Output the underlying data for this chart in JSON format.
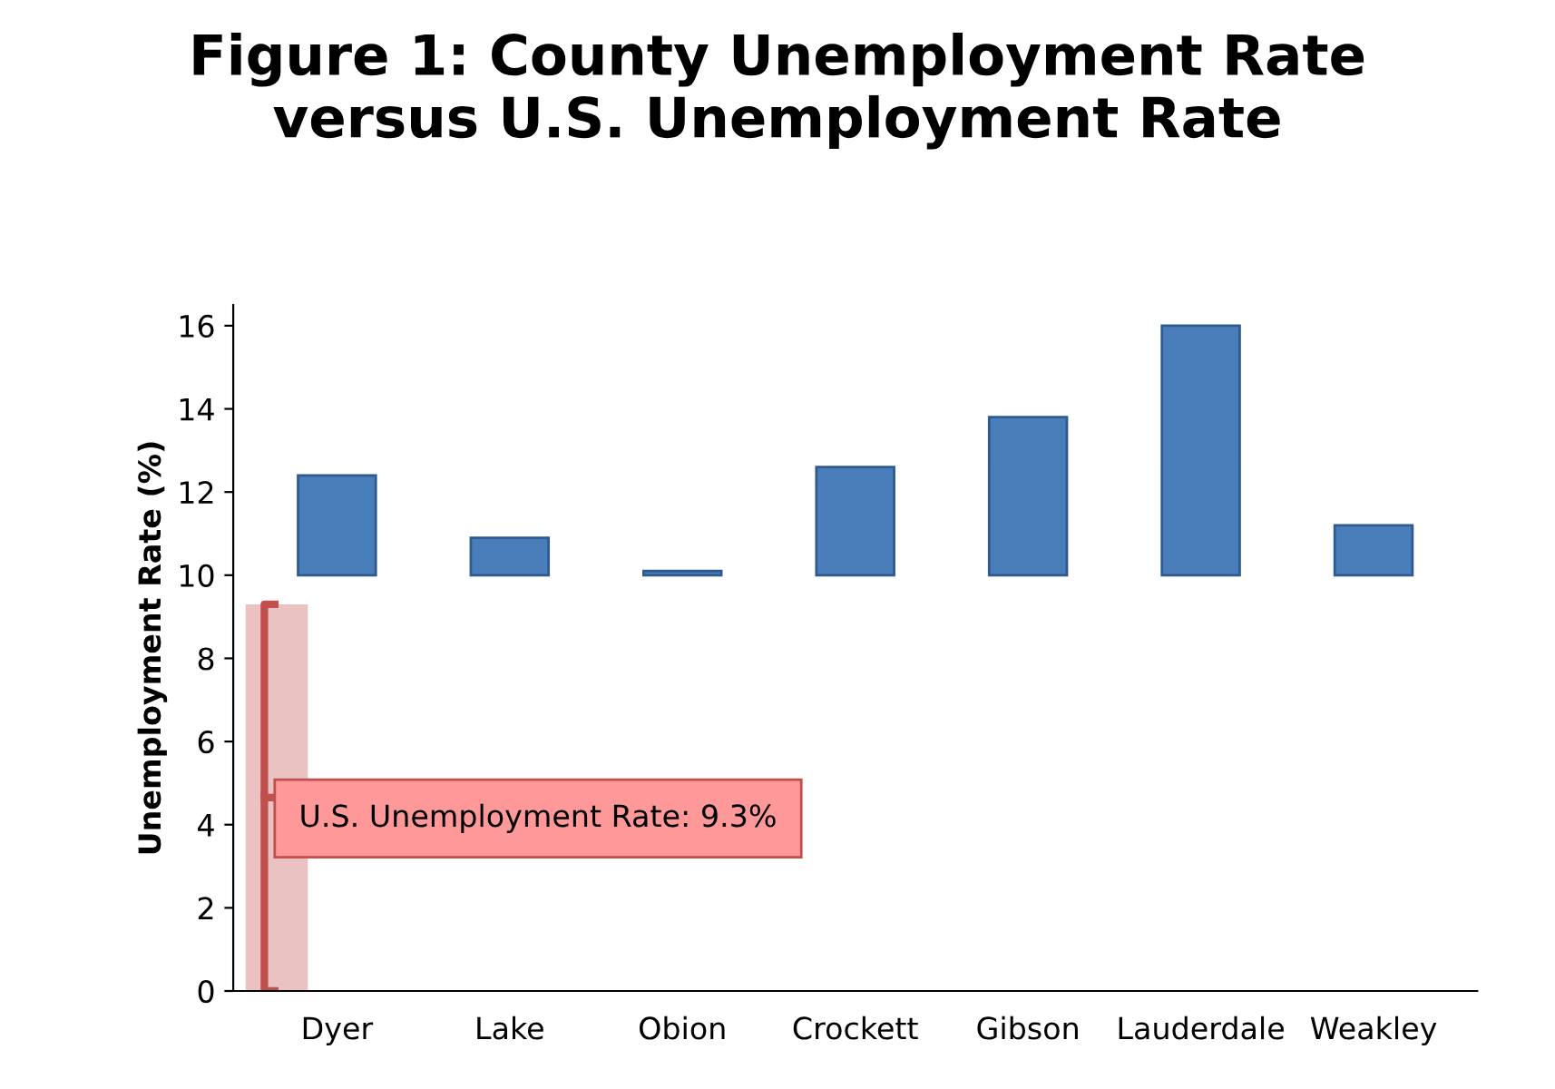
{
  "chart_data": {
    "type": "bar",
    "title": "Figure 1: County Unemployment Rate\nversus U.S. Unemployment Rate",
    "ylabel": "Unemployment Rate (%)",
    "categories": [
      "Dyer",
      "Lake",
      "Obion",
      "Crockett",
      "Gibson",
      "Lauderdale",
      "Weakley"
    ],
    "base": [
      10,
      10,
      10,
      10,
      10,
      10,
      10
    ],
    "values": [
      2.4,
      0.9,
      0.1,
      2.6,
      3.8,
      6.0,
      1.2
    ],
    "color": "#4a7ebb",
    "ylim": [
      0,
      16.5
    ],
    "yticks": [
      0,
      2,
      4,
      6,
      8,
      10,
      12,
      14,
      16
    ],
    "grid": false,
    "bands": [
      {
        "axis": "y",
        "from": 0,
        "to": 9.3,
        "label": "U.S. Unemployment Rate: 9.3%",
        "color": "#c0504d"
      }
    ]
  }
}
